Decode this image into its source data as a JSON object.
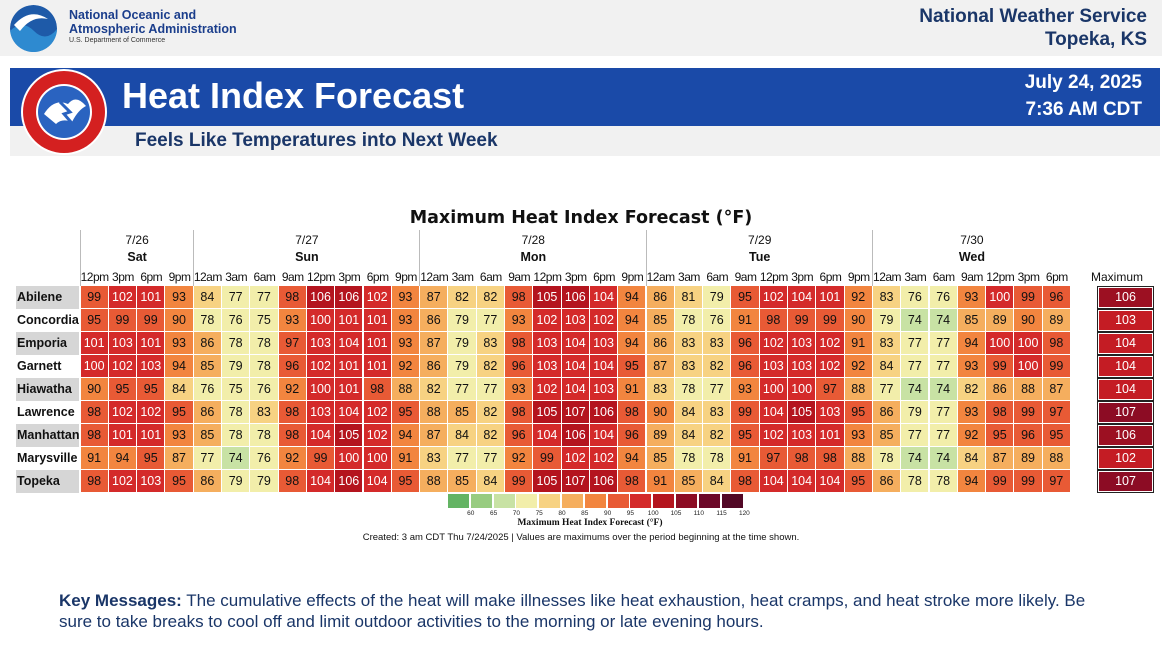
{
  "header": {
    "agency_line1": "National Oceanic and",
    "agency_line2": "Atmospheric Administration",
    "department": "U.S. Department of Commerce",
    "noaa_logo_text": "NOAA",
    "office_title": "National Weather Service",
    "office_location": "Topeka, KS"
  },
  "banner": {
    "title": "Heat Index Forecast",
    "subtitle": "Feels Like Temperatures into Next Week",
    "date": "July 24, 2025",
    "time": "7:36 AM CDT",
    "logo_text": "NATIONAL WEATHER SERVICE"
  },
  "table": {
    "title": "Maximum Heat Index Forecast (°F)",
    "max_label": "Maximum",
    "days": [
      {
        "date": "7/26",
        "day": "Sat"
      },
      {
        "date": "7/27",
        "day": "Sun"
      },
      {
        "date": "7/28",
        "day": "Mon"
      },
      {
        "date": "7/29",
        "day": "Tue"
      },
      {
        "date": "7/30",
        "day": "Wed"
      }
    ],
    "times": [
      "12pm",
      "3pm",
      "6pm",
      "9pm",
      "12am",
      "3am",
      "6am",
      "9am",
      "12pm",
      "3pm",
      "6pm",
      "9pm",
      "12am",
      "3am",
      "6am",
      "9am",
      "12pm",
      "3pm",
      "6pm",
      "9pm",
      "12am",
      "3am",
      "6am",
      "9am",
      "12pm",
      "3pm",
      "6pm",
      "9pm",
      "12am",
      "3am",
      "6am",
      "9am",
      "12pm",
      "3pm",
      "6pm"
    ],
    "rows": [
      {
        "city": "Abilene",
        "values": [
          99,
          102,
          101,
          93,
          84,
          77,
          77,
          98,
          106,
          106,
          102,
          93,
          87,
          82,
          82,
          98,
          105,
          106,
          104,
          94,
          86,
          81,
          79,
          95,
          102,
          104,
          101,
          92,
          83,
          76,
          76,
          93,
          100,
          99,
          96
        ],
        "max": 106
      },
      {
        "city": "Concordia",
        "values": [
          95,
          99,
          99,
          90,
          78,
          76,
          75,
          93,
          100,
          101,
          101,
          93,
          86,
          79,
          77,
          93,
          102,
          103,
          102,
          94,
          85,
          78,
          76,
          91,
          98,
          99,
          99,
          90,
          79,
          74,
          74,
          85,
          89,
          90,
          89
        ],
        "max": 103
      },
      {
        "city": "Emporia",
        "values": [
          101,
          103,
          101,
          93,
          86,
          78,
          78,
          97,
          103,
          104,
          101,
          93,
          87,
          79,
          83,
          98,
          103,
          104,
          103,
          94,
          86,
          83,
          83,
          96,
          102,
          103,
          102,
          91,
          83,
          77,
          77,
          94,
          100,
          100,
          98
        ],
        "max": 104
      },
      {
        "city": "Garnett",
        "values": [
          100,
          102,
          103,
          94,
          85,
          79,
          78,
          96,
          102,
          101,
          101,
          92,
          86,
          79,
          82,
          96,
          103,
          104,
          104,
          95,
          87,
          83,
          82,
          96,
          103,
          103,
          102,
          92,
          84,
          77,
          77,
          93,
          99,
          100,
          99
        ],
        "max": 104
      },
      {
        "city": "Hiawatha",
        "values": [
          90,
          95,
          95,
          84,
          76,
          75,
          76,
          92,
          100,
          101,
          98,
          88,
          82,
          77,
          77,
          93,
          102,
          104,
          103,
          91,
          83,
          78,
          77,
          93,
          100,
          100,
          97,
          88,
          77,
          74,
          74,
          82,
          86,
          88,
          87
        ],
        "max": 104
      },
      {
        "city": "Lawrence",
        "values": [
          98,
          102,
          102,
          95,
          86,
          78,
          83,
          98,
          103,
          104,
          102,
          95,
          88,
          85,
          82,
          98,
          105,
          107,
          106,
          98,
          90,
          84,
          83,
          99,
          104,
          105,
          103,
          95,
          86,
          79,
          77,
          93,
          98,
          99,
          97
        ],
        "max": 107
      },
      {
        "city": "Manhattan",
        "values": [
          98,
          101,
          101,
          93,
          85,
          78,
          78,
          98,
          104,
          105,
          102,
          94,
          87,
          84,
          82,
          96,
          104,
          106,
          104,
          96,
          89,
          84,
          82,
          95,
          102,
          103,
          101,
          93,
          85,
          77,
          77,
          92,
          95,
          96,
          95
        ],
        "max": 106
      },
      {
        "city": "Marysville",
        "values": [
          91,
          94,
          95,
          87,
          77,
          74,
          76,
          92,
          99,
          100,
          100,
          91,
          83,
          77,
          77,
          92,
          99,
          102,
          102,
          94,
          85,
          78,
          78,
          91,
          97,
          98,
          98,
          88,
          78,
          74,
          74,
          84,
          87,
          89,
          88
        ],
        "max": 102
      },
      {
        "city": "Topeka",
        "values": [
          98,
          102,
          103,
          95,
          86,
          79,
          79,
          98,
          104,
          106,
          104,
          95,
          88,
          85,
          84,
          99,
          105,
          107,
          106,
          98,
          91,
          85,
          84,
          98,
          104,
          104,
          104,
          95,
          86,
          78,
          78,
          94,
          99,
          99,
          97
        ],
        "max": 107
      }
    ]
  },
  "legend": {
    "title": "Maximum Heat Index Forecast (°F)",
    "ticks": [
      "60",
      "65",
      "70",
      "75",
      "80",
      "85",
      "90",
      "95",
      "100",
      "105",
      "110",
      "115",
      "120"
    ],
    "colors": [
      "#64b464",
      "#98cc80",
      "#c8e2a4",
      "#f2eeaa",
      "#f7d282",
      "#f5ae5e",
      "#f2853f",
      "#e85a35",
      "#d42a2a",
      "#b4141e",
      "#8c0c24",
      "#6c0828",
      "#520826"
    ]
  },
  "footnote": "Created: 3 am CDT Thu 7/24/2025  |  Values are maximums over the period beginning at the time shown.",
  "key_messages": {
    "label": "Key Messages:",
    "text": " The cumulative effects of the heat will make illnesses like heat exhaustion, heat cramps, and heat stroke more likely. Be sure to take breaks to cool off and limit outdoor activities to the morning or late evening hours."
  }
}
